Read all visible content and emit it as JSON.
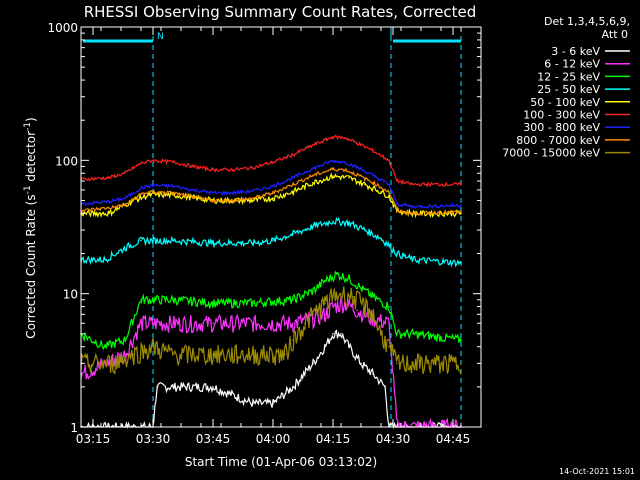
{
  "title": "RHESSI Observing Summary Count Rates, Corrected",
  "footer_date": "14-Oct-2021 15:01",
  "chart_data": {
    "type": "line",
    "title": "RHESSI Observing Summary Count Rates, Corrected",
    "xlabel": "Start Time (01-Apr-06 03:13:02)",
    "ylabel_main": "Corrected Count Rate (s",
    "ylabel_sup1": "-1",
    "ylabel_mid": " detector",
    "ylabel_sup2": "-1",
    "ylabel_end": ")",
    "y_scale": "log",
    "ylim": [
      1,
      1000
    ],
    "xlim_minutes": [
      -3,
      97
    ],
    "x_tick_labels": [
      "03:15",
      "03:30",
      "03:45",
      "04:00",
      "04:15",
      "04:30",
      "04:45"
    ],
    "x_tick_minutes": [
      0,
      15,
      30,
      45,
      60,
      75,
      90
    ],
    "y_tick_labels": [
      "1",
      "10",
      "100",
      "1000"
    ],
    "y_tick_values": [
      1,
      10,
      100,
      1000
    ],
    "legend_header": [
      "Det 1,3,4,5,6,9,",
      "Att 0"
    ],
    "legend_placement": "right",
    "annotations": {
      "night_marker": "N",
      "dashed_vertical_lines_min": [
        -3,
        15,
        74.5,
        92
      ],
      "solid_vertical_lines_min": [
        -3,
        74.5
      ],
      "night_bars_min": [
        [
          -3,
          15
        ],
        [
          74.5,
          92
        ]
      ],
      "night_bar_color": "#00e5ff"
    },
    "series": [
      {
        "name": "3 - 6 keV",
        "color": "#ffffff",
        "x": [
          -3,
          8,
          15,
          16,
          20,
          30,
          40,
          45,
          50,
          55,
          58,
          60,
          62,
          64,
          67,
          70,
          73,
          74,
          76,
          80,
          85,
          92
        ],
        "y": [
          1,
          1,
          1,
          2,
          2,
          2,
          1.5,
          1.5,
          2,
          3,
          4,
          5,
          5,
          4,
          3,
          2.5,
          2,
          1,
          1,
          1,
          1,
          1
        ]
      },
      {
        "name": "6 - 12 keV",
        "color": "#ff33ff",
        "x": [
          -3,
          8,
          12,
          20,
          30,
          40,
          50,
          55,
          58,
          60,
          63,
          66,
          70,
          74,
          76,
          80,
          92
        ],
        "y": [
          2.5,
          3.5,
          6,
          6,
          6,
          6,
          6,
          6.5,
          7,
          8,
          8.5,
          7.5,
          6.5,
          6,
          1,
          1,
          1
        ]
      },
      {
        "name": "12 - 25 keV",
        "color": "#00ff00",
        "x": [
          -3,
          3,
          8,
          12,
          20,
          30,
          40,
          50,
          55,
          58,
          61,
          64,
          67,
          70,
          74,
          76,
          80,
          92
        ],
        "y": [
          5,
          4,
          4.5,
          9,
          9,
          8.5,
          8.5,
          9,
          10.5,
          12.5,
          14,
          13,
          11,
          9.5,
          8,
          5,
          5,
          4.5
        ]
      },
      {
        "name": "25 - 50 keV",
        "color": "#00ffff",
        "x": [
          -3,
          3,
          8,
          12,
          20,
          30,
          40,
          45,
          50,
          55,
          60,
          64,
          68,
          72,
          74,
          76,
          80,
          92
        ],
        "y": [
          18,
          18,
          22,
          25,
          25,
          24,
          24,
          25,
          28,
          32,
          35,
          34,
          30,
          26,
          23,
          20,
          18,
          17
        ]
      },
      {
        "name": "50 - 100 keV",
        "color": "#ffff00",
        "x": [
          -3,
          4,
          10,
          14,
          20,
          30,
          40,
          45,
          50,
          55,
          60,
          64,
          68,
          72,
          74,
          76,
          80,
          92
        ],
        "y": [
          40,
          40,
          50,
          55,
          55,
          50,
          50,
          52,
          58,
          68,
          76,
          74,
          66,
          58,
          54,
          42,
          40,
          40
        ]
      },
      {
        "name": "100 - 300 keV",
        "color": "#ff2020",
        "x": [
          -3,
          4,
          8,
          12,
          15,
          20,
          25,
          30,
          35,
          40,
          45,
          50,
          55,
          60,
          63,
          66,
          70,
          74,
          76,
          80,
          92
        ],
        "y": [
          72,
          74,
          80,
          95,
          100,
          97,
          90,
          85,
          85,
          88,
          97,
          110,
          130,
          150,
          148,
          135,
          118,
          100,
          70,
          66,
          66
        ]
      },
      {
        "name": "300 - 800 keV",
        "color": "#2020ff",
        "x": [
          -3,
          4,
          8,
          12,
          15,
          20,
          25,
          30,
          35,
          40,
          45,
          50,
          55,
          60,
          63,
          66,
          70,
          74,
          76,
          80,
          92
        ],
        "y": [
          47,
          49,
          52,
          62,
          65,
          64,
          60,
          57,
          57,
          59,
          64,
          74,
          87,
          99,
          97,
          89,
          77,
          66,
          47,
          45,
          46
        ]
      },
      {
        "name": "800 - 7000 keV",
        "color": "#ff8c00",
        "x": [
          -3,
          4,
          8,
          12,
          15,
          20,
          25,
          30,
          35,
          40,
          45,
          50,
          55,
          60,
          63,
          66,
          70,
          74,
          76,
          80,
          92
        ],
        "y": [
          42,
          44,
          46,
          56,
          58,
          57,
          53,
          50,
          50,
          52,
          57,
          66,
          77,
          86,
          85,
          78,
          68,
          58,
          42,
          40,
          41
        ]
      },
      {
        "name": "7000 - 15000 keV",
        "color": "#9c8b00",
        "x": [
          -3,
          5,
          10,
          15,
          20,
          30,
          40,
          45,
          48,
          50,
          53,
          55,
          58,
          60,
          62,
          65,
          68,
          70,
          72,
          74,
          76,
          80,
          92
        ],
        "y": [
          3,
          3,
          3.5,
          4,
          3.5,
          3.5,
          3.5,
          3.5,
          3.5,
          4.5,
          6,
          7,
          8.5,
          9.5,
          10,
          9.5,
          8,
          7,
          5,
          4,
          3,
          3,
          3
        ]
      }
    ]
  }
}
